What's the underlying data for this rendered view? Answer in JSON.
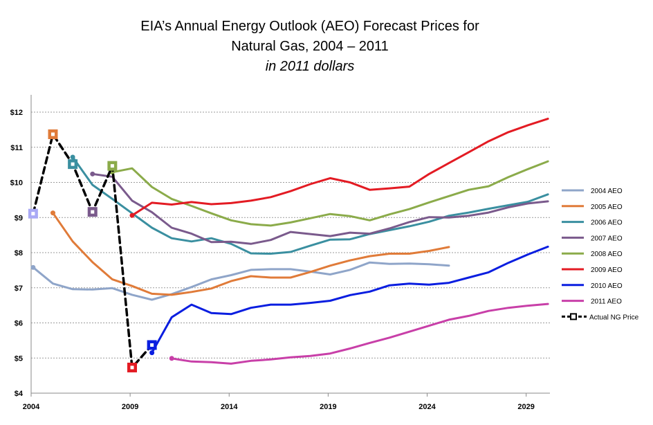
{
  "chart_data": {
    "type": "line",
    "title": "EIA’s Annual Energy Outlook (AEO) Forecast Prices for",
    "title_line2": "Natural Gas, 2004 – 2011",
    "subtitle": "in 2011 dollars",
    "xlabel": "",
    "ylabel": "",
    "xlim": [
      2004,
      2030.2
    ],
    "ylim": [
      4,
      12
    ],
    "x_ticks": [
      2004,
      2009,
      2014,
      2019,
      2024,
      2029
    ],
    "x_tick_labels": [
      "2004",
      "2009",
      "2014",
      "2019",
      "2024",
      "2029"
    ],
    "y_ticks": [
      4,
      5,
      6,
      7,
      8,
      9,
      10,
      11,
      12
    ],
    "y_tick_labels": [
      "$4",
      "$5",
      "$6",
      "$7",
      "$8",
      "$9",
      "$10",
      "$11",
      "$12"
    ],
    "grid": true,
    "legend_position": "right",
    "series": [
      {
        "name": "2004 AEO",
        "color": "#8fa5c9",
        "x": [
          2004.1,
          2005.1,
          2006.1,
          2007.1,
          2008.1,
          2009.1,
          2010.1,
          2011.1,
          2012.1,
          2013.1,
          2014.1,
          2015.1,
          2016.1,
          2017.1,
          2018.1,
          2019.1,
          2020.1,
          2021.1,
          2022.1,
          2023.1,
          2024.1,
          2025.1
        ],
        "y": [
          7.58,
          7.12,
          6.96,
          6.95,
          6.99,
          6.8,
          6.66,
          6.82,
          7.02,
          7.24,
          7.36,
          7.51,
          7.53,
          7.53,
          7.46,
          7.38,
          7.51,
          7.72,
          7.68,
          7.69,
          7.67,
          7.63
        ]
      },
      {
        "name": "2005 AEO",
        "color": "#e07b39",
        "x": [
          2005.1,
          2006.1,
          2007.1,
          2008.1,
          2009.1,
          2010.1,
          2011.1,
          2012.1,
          2013.1,
          2014.1,
          2015.1,
          2016.1,
          2017.1,
          2018.1,
          2019.1,
          2020.1,
          2021.1,
          2022.1,
          2023.1,
          2024.1,
          2025.1
        ],
        "y": [
          9.13,
          8.32,
          7.73,
          7.24,
          7.05,
          6.83,
          6.8,
          6.88,
          6.98,
          7.19,
          7.33,
          7.29,
          7.29,
          7.45,
          7.63,
          7.78,
          7.9,
          7.97,
          7.97,
          8.05,
          8.16
        ]
      },
      {
        "name": "2006 AEO",
        "color": "#3a8fa0",
        "x": [
          2006.1,
          2007.1,
          2008.1,
          2009.1,
          2010.1,
          2011.1,
          2012.1,
          2013.1,
          2014.1,
          2015.1,
          2016.1,
          2017.1,
          2018.1,
          2019.1,
          2020.1,
          2021.1,
          2022.1,
          2023.1,
          2024.1,
          2025.1,
          2026.1,
          2027.1,
          2028.1,
          2029.1,
          2030.1
        ],
        "y": [
          10.72,
          9.93,
          9.53,
          9.12,
          8.71,
          8.41,
          8.32,
          8.41,
          8.25,
          7.98,
          7.97,
          8.02,
          8.2,
          8.37,
          8.38,
          8.53,
          8.64,
          8.75,
          8.88,
          9.05,
          9.14,
          9.25,
          9.35,
          9.45,
          9.66
        ]
      },
      {
        "name": "2007 AEO",
        "color": "#7a5a8c",
        "x": [
          2007.1,
          2008.1,
          2009.1,
          2010.1,
          2011.1,
          2012.1,
          2013.1,
          2014.1,
          2015.1,
          2016.1,
          2017.1,
          2018.1,
          2019.1,
          2020.1,
          2021.1,
          2022.1,
          2023.1,
          2024.1,
          2025.1,
          2026.1,
          2027.1,
          2028.1,
          2029.1,
          2030.1
        ],
        "y": [
          10.24,
          10.16,
          9.48,
          9.15,
          8.71,
          8.54,
          8.3,
          8.31,
          8.25,
          8.36,
          8.59,
          8.53,
          8.47,
          8.57,
          8.54,
          8.69,
          8.87,
          9.01,
          9.0,
          9.05,
          9.14,
          9.29,
          9.4,
          9.46
        ]
      },
      {
        "name": "2008 AEO",
        "color": "#8bab4a",
        "x": [
          2008.1,
          2009.1,
          2010.1,
          2011.1,
          2012.1,
          2013.1,
          2014.1,
          2015.1,
          2016.1,
          2017.1,
          2018.1,
          2019.1,
          2020.1,
          2021.1,
          2022.1,
          2023.1,
          2024.1,
          2025.1,
          2026.1,
          2027.1,
          2028.1,
          2029.1,
          2030.1
        ],
        "y": [
          10.29,
          10.4,
          9.87,
          9.53,
          9.33,
          9.12,
          8.92,
          8.81,
          8.77,
          8.86,
          8.98,
          9.1,
          9.04,
          8.92,
          9.09,
          9.24,
          9.43,
          9.61,
          9.79,
          9.89,
          10.15,
          10.38,
          10.6
        ]
      },
      {
        "name": "2009 AEO",
        "color": "#e31b23",
        "x": [
          2009.1,
          2010.1,
          2011.1,
          2012.1,
          2013.1,
          2014.1,
          2015.1,
          2016.1,
          2017.1,
          2018.1,
          2019.1,
          2020.1,
          2021.1,
          2022.1,
          2023.1,
          2024.1,
          2025.1,
          2026.1,
          2027.1,
          2028.1,
          2029.1,
          2030.1
        ],
        "y": [
          9.06,
          9.42,
          9.37,
          9.44,
          9.38,
          9.41,
          9.48,
          9.58,
          9.75,
          9.95,
          10.12,
          10.0,
          9.79,
          9.83,
          9.88,
          10.24,
          10.55,
          10.86,
          11.17,
          11.43,
          11.63,
          11.81
        ]
      },
      {
        "name": "2010 AEO",
        "color": "#0a1ee0",
        "x": [
          2010.1,
          2011.1,
          2012.1,
          2013.1,
          2014.1,
          2015.1,
          2016.1,
          2017.1,
          2018.1,
          2019.1,
          2020.1,
          2021.1,
          2022.1,
          2023.1,
          2024.1,
          2025.1,
          2026.1,
          2027.1,
          2028.1,
          2029.1,
          2030.1
        ],
        "y": [
          5.15,
          6.16,
          6.52,
          6.28,
          6.25,
          6.43,
          6.52,
          6.52,
          6.57,
          6.63,
          6.79,
          6.89,
          7.07,
          7.12,
          7.09,
          7.14,
          7.29,
          7.44,
          7.71,
          7.95,
          8.17
        ]
      },
      {
        "name": "2011 AEO",
        "color": "#c83fa8",
        "x": [
          2011.1,
          2012.1,
          2013.1,
          2014.1,
          2015.1,
          2016.1,
          2017.1,
          2018.1,
          2019.1,
          2020.1,
          2021.1,
          2022.1,
          2023.1,
          2024.1,
          2025.1,
          2026.1,
          2027.1,
          2028.1,
          2029.1,
          2030.1
        ],
        "y": [
          4.99,
          4.9,
          4.88,
          4.84,
          4.92,
          4.96,
          5.02,
          5.06,
          5.13,
          5.27,
          5.43,
          5.58,
          5.75,
          5.92,
          6.09,
          6.2,
          6.34,
          6.43,
          6.49,
          6.54
        ]
      },
      {
        "name": "Actual NG Price",
        "color": "#000000",
        "dashed": true,
        "x": [
          2004.1,
          2005.1,
          2006.1,
          2007.1,
          2008.1,
          2009.1,
          2010.1
        ],
        "y": [
          9.11,
          11.37,
          10.52,
          9.16,
          10.47,
          4.73,
          5.37
        ],
        "marker_colors": [
          "#a9a9f5",
          "#e07b39",
          "#3a8fa0",
          "#7a5a8c",
          "#8bab4a",
          "#e31b23",
          "#0a1ee0"
        ]
      }
    ]
  }
}
